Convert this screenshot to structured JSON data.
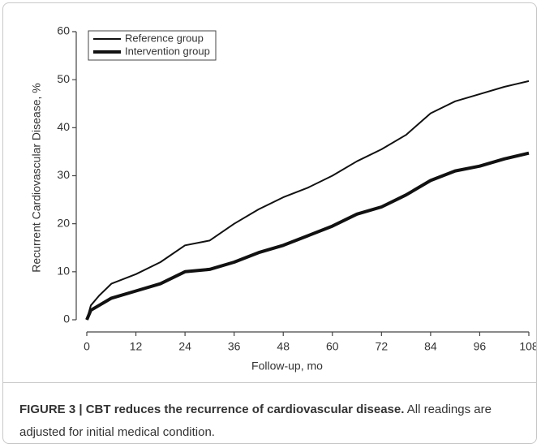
{
  "chart_data": {
    "type": "line",
    "xlabel": "Follow-up, mo",
    "ylabel": "Recurrent Cardiovascular Disease, %",
    "x": [
      0,
      1,
      3,
      6,
      12,
      18,
      24,
      30,
      36,
      42,
      48,
      54,
      60,
      66,
      72,
      78,
      84,
      90,
      96,
      102,
      108
    ],
    "series": [
      {
        "name": "Reference group",
        "color": "#111111",
        "values": [
          0,
          3,
          5,
          7.5,
          9.5,
          12,
          15.5,
          16.5,
          20,
          23,
          25.5,
          27.5,
          30,
          33,
          35.5,
          38.5,
          43,
          45.5,
          47,
          48.5,
          49.7
        ]
      },
      {
        "name": "Intervention group",
        "color": "#111111",
        "values": [
          0,
          2,
          3,
          4.5,
          6,
          7.5,
          10,
          10.5,
          12,
          14,
          15.5,
          17.5,
          19.5,
          22,
          23.5,
          26,
          29,
          31,
          32,
          33.5,
          34.7
        ]
      }
    ],
    "xlim": [
      0,
      108
    ],
    "xticks": [
      0,
      12,
      24,
      36,
      48,
      60,
      72,
      84,
      96,
      108
    ],
    "ylim": [
      0,
      60
    ],
    "yticks": [
      0,
      10,
      20,
      30,
      40,
      50,
      60
    ],
    "legend": "upper left",
    "grid": false
  },
  "caption": {
    "label": "FIGURE 3 | CBT reduces the recurrence of cardiovascular disease.",
    "text": "All readings are adjusted for initial medical condition."
  }
}
